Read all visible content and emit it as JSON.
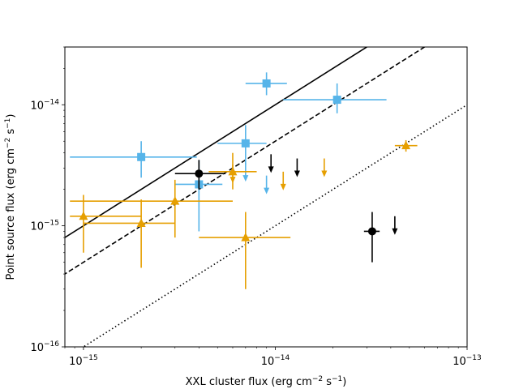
{
  "chart_data": {
    "type": "scatter",
    "title": "",
    "xscale": "log",
    "yscale": "log",
    "xlim": [
      8e-16,
      1e-13
    ],
    "ylim": [
      1e-16,
      3e-14
    ],
    "xlabel": {
      "main": "XXL cluster flux (erg cm",
      "exp1": "−2",
      "mid": " s",
      "exp2": "−1",
      "end": ")"
    },
    "ylabel": {
      "main": "Point source flux (erg cm",
      "exp1": "−2",
      "mid": " s",
      "exp2": "−1",
      "end": ")"
    },
    "x_ticks": [
      {
        "value": 1e-15,
        "base": "10",
        "exp": "−15"
      },
      {
        "value": 1e-14,
        "base": "10",
        "exp": "−14"
      },
      {
        "value": 1e-13,
        "base": "10",
        "exp": "−13"
      }
    ],
    "y_ticks": [
      {
        "value": 1e-16,
        "base": "10",
        "exp": "−16"
      },
      {
        "value": 1e-15,
        "base": "10",
        "exp": "−15"
      },
      {
        "value": 1e-14,
        "base": "10",
        "exp": "−14"
      }
    ],
    "lines": [
      {
        "name": "solid relation",
        "style": "solid",
        "color": "#000000",
        "ratio": 1.0
      },
      {
        "name": "dashed relation",
        "style": "dashed",
        "color": "#000000",
        "ratio": 0.5
      },
      {
        "name": "dotted relation",
        "style": "dotted",
        "color": "#000000",
        "ratio": 0.1
      }
    ],
    "series": [
      {
        "name": "blue squares",
        "marker": "square",
        "color": "#56B4E9",
        "points": [
          {
            "x": 2e-15,
            "y": 3.7e-15,
            "xerr": [
              8.5e-16,
              3.9e-15
            ],
            "yerr": [
              2.5e-15,
              5e-15
            ]
          },
          {
            "x": 4e-15,
            "y": 2.2e-15,
            "xerr": [
              3e-15,
              5.3e-15
            ],
            "yerr": [
              9e-16,
              3.5e-15
            ]
          },
          {
            "x": 7e-15,
            "y": 4.8e-15,
            "xerr": [
              5e-15,
              9e-15
            ],
            "yerr": [
              3.2e-15,
              6.8e-15
            ]
          },
          {
            "x": 9e-15,
            "y": 1.5e-14,
            "xerr": [
              7e-15,
              1.15e-14
            ],
            "yerr": [
              1.2e-14,
              1.85e-14
            ]
          },
          {
            "x": 2.1e-14,
            "y": 1.1e-14,
            "xerr": [
              1.1e-14,
              3.8e-14
            ],
            "yerr": [
              8.5e-15,
              1.5e-14
            ]
          }
        ],
        "upper_limits": [
          {
            "x": 7e-15,
            "y": 3.3e-15
          },
          {
            "x": 9e-15,
            "y": 2.6e-15
          }
        ]
      },
      {
        "name": "orange triangles",
        "marker": "triangle",
        "color": "#E69F00",
        "points": [
          {
            "x": 1e-15,
            "y": 1.2e-15,
            "xerr": [
              8.5e-16,
              2e-15
            ],
            "yerr": [
              6e-16,
              1.8e-15
            ]
          },
          {
            "x": 2e-15,
            "y": 1.05e-15,
            "xerr": [
              1e-15,
              3e-15
            ],
            "yerr": [
              4.5e-16,
              1.65e-15
            ]
          },
          {
            "x": 3e-15,
            "y": 1.6e-15,
            "xerr": [
              8.5e-16,
              6e-15
            ],
            "yerr": [
              8e-16,
              2.4e-15
            ]
          },
          {
            "x": 6e-15,
            "y": 2.8e-15,
            "xerr": [
              4.5e-15,
              8e-15
            ],
            "yerr": [
              2e-15,
              4e-15
            ]
          },
          {
            "x": 7e-15,
            "y": 8e-16,
            "xerr": [
              4e-15,
              1.2e-14
            ],
            "yerr": [
              3e-16,
              1.3e-15
            ]
          },
          {
            "x": 4.8e-14,
            "y": 4.6e-15,
            "xerr": [
              4.2e-14,
              5.5e-14
            ],
            "yerr": [
              4.1e-15,
              5.1e-15
            ]
          }
        ],
        "upper_limits": [
          {
            "x": 6e-15,
            "y": 3.2e-15
          },
          {
            "x": 1.1e-14,
            "y": 2.8e-15
          },
          {
            "x": 1.8e-14,
            "y": 3.6e-15
          }
        ]
      },
      {
        "name": "black circles",
        "marker": "circle",
        "color": "#000000",
        "points": [
          {
            "x": 4e-15,
            "y": 2.7e-15,
            "xerr": [
              3e-15,
              5.5e-15
            ],
            "yerr": [
              2e-15,
              3.5e-15
            ]
          },
          {
            "x": 3.2e-14,
            "y": 9e-16,
            "xerr": [
              2.9e-14,
              3.5e-14
            ],
            "yerr": [
              5e-16,
              1.3e-15
            ]
          }
        ],
        "upper_limits": [
          {
            "x": 9.5e-15,
            "y": 3.9e-15
          },
          {
            "x": 1.3e-14,
            "y": 3.6e-15
          },
          {
            "x": 4.2e-14,
            "y": 1.2e-15
          }
        ]
      }
    ]
  }
}
